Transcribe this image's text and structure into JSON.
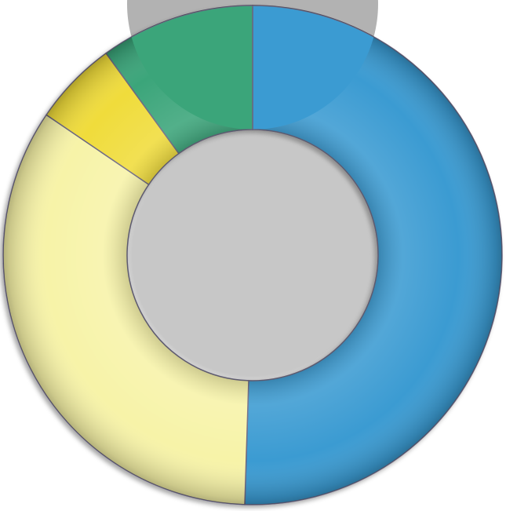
{
  "chart_data": {
    "type": "pie",
    "style": "donut",
    "legend": "none",
    "slices": [
      {
        "value": 50.5,
        "color": "#3a9bd2"
      },
      {
        "value": 34.0,
        "color": "#f7f3a8"
      },
      {
        "value": 5.5,
        "color": "#f0dc3a"
      },
      {
        "value": 10.0,
        "color": "#3aa57a"
      }
    ]
  }
}
